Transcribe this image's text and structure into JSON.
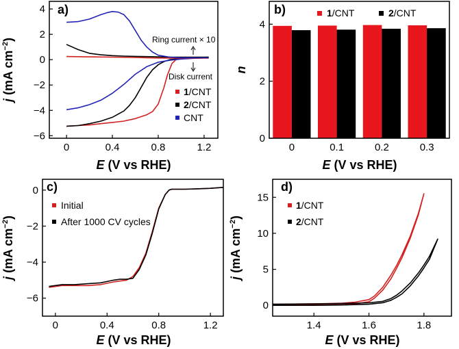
{
  "chart_data": [
    {
      "panel": "a)",
      "type": "line",
      "xlabel_var": "E",
      "xlabel_rest": " (V vs RHE)",
      "ylabel_var": "j",
      "ylabel_rest": " (mA cm",
      "ylabel_sup": "−2",
      "ylabel_close": ")",
      "xlim": [
        -0.15,
        1.32
      ],
      "ylim": [
        -6.2,
        4.6
      ],
      "xticks": [
        0,
        0.4,
        0.8,
        1.2
      ],
      "xtick_labels": [
        "0",
        "0.4",
        "0.8",
        "1.2"
      ],
      "yticks": [
        -6,
        -4,
        -2,
        0,
        2,
        4
      ],
      "ytick_labels": [
        "−6",
        "−4",
        "−2",
        "0",
        "2",
        "4"
      ],
      "annotations": {
        "ring_prefix": "Ring current",
        "ring_suffix": "× 10",
        "disk": "Disk current"
      },
      "legend_position": "lower-right",
      "series": [
        {
          "name_bold": "1",
          "name_rest": "/CNT",
          "color": "#d42020",
          "x": [
            0,
            0.1,
            0.2,
            0.3,
            0.4,
            0.5,
            0.6,
            0.7,
            0.75,
            0.8,
            0.85,
            0.88,
            0.92,
            0.96,
            1.0,
            1.1,
            1.24
          ],
          "y": [
            -5.25,
            -5.2,
            -5.15,
            -5.05,
            -4.95,
            -4.85,
            -4.65,
            -4.35,
            -4.1,
            -3.5,
            -2.2,
            -1.2,
            -0.3,
            0.05,
            0.1,
            0.12,
            0.15
          ]
        },
        {
          "name_bold": "2",
          "name_rest": "/CNT",
          "color": "#000000",
          "x": [
            0,
            0.1,
            0.2,
            0.3,
            0.4,
            0.5,
            0.55,
            0.6,
            0.65,
            0.7,
            0.75,
            0.8,
            0.85,
            0.9,
            1.0,
            1.1,
            1.24
          ],
          "y": [
            -5.25,
            -5.2,
            -5.05,
            -4.85,
            -4.55,
            -4.05,
            -3.6,
            -3.0,
            -2.2,
            -1.4,
            -0.8,
            -0.4,
            -0.15,
            0.0,
            0.1,
            0.15,
            0.2
          ]
        },
        {
          "name_bold": "",
          "name_rest": "CNT",
          "color": "#2323b5",
          "x": [
            0,
            0.1,
            0.2,
            0.3,
            0.4,
            0.5,
            0.6,
            0.7,
            0.8,
            0.9,
            1.0,
            1.1,
            1.24
          ],
          "y": [
            -3.95,
            -3.8,
            -3.55,
            -3.2,
            -2.65,
            -1.95,
            -1.15,
            -0.55,
            -0.2,
            -0.05,
            0.05,
            0.1,
            0.15
          ]
        },
        {
          "name_bold": "",
          "name_rest": "1/CNT ring",
          "color": "#d42020",
          "legend": false,
          "x": [
            0,
            0.2,
            0.4,
            0.6,
            0.7,
            0.8,
            0.9,
            1.0,
            1.1,
            1.24
          ],
          "y": [
            0.25,
            0.22,
            0.2,
            0.17,
            0.15,
            0.13,
            0.12,
            0.12,
            0.12,
            0.12
          ]
        },
        {
          "name_bold": "",
          "name_rest": "2/CNT ring",
          "color": "#000000",
          "legend": false,
          "x": [
            0,
            0.05,
            0.1,
            0.15,
            0.2,
            0.3,
            0.4,
            0.5,
            0.6,
            0.7,
            0.8,
            0.9,
            1.0,
            1.24
          ],
          "y": [
            1.2,
            1.0,
            0.8,
            0.65,
            0.5,
            0.38,
            0.32,
            0.28,
            0.26,
            0.24,
            0.22,
            0.2,
            0.2,
            0.2
          ]
        },
        {
          "name_bold": "",
          "name_rest": "CNT ring",
          "color": "#2323b5",
          "legend": false,
          "x": [
            0,
            0.1,
            0.2,
            0.3,
            0.35,
            0.4,
            0.45,
            0.5,
            0.55,
            0.6,
            0.65,
            0.7,
            0.75,
            0.8,
            0.9,
            1.0,
            1.24
          ],
          "y": [
            2.95,
            3.0,
            3.2,
            3.55,
            3.7,
            3.8,
            3.75,
            3.55,
            3.05,
            2.3,
            1.55,
            1.0,
            0.6,
            0.35,
            0.2,
            0.15,
            0.15
          ]
        }
      ]
    },
    {
      "panel": "b)",
      "type": "bar",
      "xlabel_var": "E",
      "xlabel_rest": " (V vs RHE)",
      "ylabel_var": "n",
      "categories": [
        "0",
        "0.1",
        "0.2",
        "0.3"
      ],
      "ylim": [
        0,
        4.8
      ],
      "yticks": [
        0,
        2,
        4
      ],
      "ytick_labels": [
        "0",
        "2",
        "4"
      ],
      "legend_position": "top",
      "series": [
        {
          "name_bold": "1",
          "name_rest": "/CNT",
          "color": "#e8171d",
          "values": [
            3.94,
            3.95,
            3.97,
            3.96
          ]
        },
        {
          "name_bold": "2",
          "name_rest": "/CNT",
          "color": "#000000",
          "values": [
            3.79,
            3.81,
            3.84,
            3.86
          ]
        }
      ]
    },
    {
      "panel": "c)",
      "type": "line",
      "xlabel_var": "E",
      "xlabel_rest": " (V vs RHE)",
      "ylabel_var": "j",
      "ylabel_rest": " (mA cm",
      "ylabel_sup": "−2",
      "ylabel_close": ")",
      "xlim": [
        -0.1,
        1.3
      ],
      "ylim": [
        -7.0,
        0.6
      ],
      "xticks": [
        0,
        0.4,
        0.8,
        1.2
      ],
      "xtick_labels": [
        "0",
        "0.4",
        "0.8",
        "1.2"
      ],
      "yticks": [
        -6,
        -4,
        -2,
        0
      ],
      "ytick_labels": [
        "−6",
        "−4",
        "−2",
        "0"
      ],
      "legend_position": "top-left",
      "series": [
        {
          "name_bold": "",
          "name_rest": "Initial",
          "color": "#d42020",
          "x": [
            -0.05,
            0.05,
            0.15,
            0.25,
            0.35,
            0.45,
            0.5,
            0.55,
            0.6,
            0.65,
            0.7,
            0.75,
            0.8,
            0.85,
            0.88,
            0.9,
            0.95,
            1.0,
            1.1,
            1.2,
            1.3
          ],
          "y": [
            -5.4,
            -5.3,
            -5.3,
            -5.3,
            -5.25,
            -5.1,
            -5.05,
            -5.0,
            -4.8,
            -4.3,
            -3.5,
            -2.3,
            -1.0,
            -0.25,
            0.0,
            0.05,
            0.05,
            0.05,
            0.07,
            0.1,
            0.15
          ]
        },
        {
          "name_bold": "",
          "name_rest": "After 1000 CV cycles",
          "color": "#000000",
          "x": [
            -0.05,
            0.05,
            0.15,
            0.25,
            0.35,
            0.45,
            0.5,
            0.55,
            0.6,
            0.65,
            0.7,
            0.75,
            0.8,
            0.85,
            0.88,
            0.9,
            0.95,
            1.0,
            1.1,
            1.2,
            1.3
          ],
          "y": [
            -5.35,
            -5.25,
            -5.25,
            -5.2,
            -5.15,
            -5.0,
            -4.95,
            -4.95,
            -4.9,
            -4.4,
            -3.6,
            -2.4,
            -1.05,
            -0.25,
            0.0,
            0.05,
            0.05,
            0.05,
            0.07,
            0.1,
            0.15
          ]
        }
      ]
    },
    {
      "panel": "d)",
      "type": "line",
      "xlabel_var": "E",
      "xlabel_rest": " (V vs RHE)",
      "ylabel_var": "j",
      "ylabel_rest": " (mA cm",
      "ylabel_sup": "−2",
      "ylabel_close": ")",
      "xlim": [
        1.25,
        1.9
      ],
      "ylim": [
        -1.5,
        17.5
      ],
      "xticks": [
        1.4,
        1.6,
        1.8
      ],
      "xtick_labels": [
        "1.4",
        "1.6",
        "1.8"
      ],
      "yticks": [
        0,
        5,
        10,
        15
      ],
      "ytick_labels": [
        "0",
        "5",
        "10",
        "15"
      ],
      "legend_position": "top-left",
      "series": [
        {
          "name_bold": "1",
          "name_rest": "/CNT",
          "color": "#d42020",
          "x": [
            1.25,
            1.4,
            1.5,
            1.55,
            1.6,
            1.62,
            1.65,
            1.68,
            1.7,
            1.72,
            1.75,
            1.78,
            1.8,
            1.78,
            1.75,
            1.72,
            1.7,
            1.68,
            1.65,
            1.62,
            1.6,
            1.55,
            1.5,
            1.4,
            1.25
          ],
          "y": [
            0.15,
            0.2,
            0.3,
            0.45,
            0.8,
            1.3,
            2.5,
            4.2,
            5.5,
            7.0,
            9.6,
            12.8,
            15.5,
            12.6,
            9.3,
            6.6,
            5.1,
            3.7,
            2.1,
            1.0,
            0.5,
            0.2,
            0.1,
            0.05,
            0.05
          ]
        },
        {
          "name_bold": "2",
          "name_rest": "/CNT",
          "color": "#000000",
          "x": [
            1.25,
            1.4,
            1.5,
            1.6,
            1.65,
            1.68,
            1.7,
            1.72,
            1.75,
            1.78,
            1.8,
            1.82,
            1.85,
            1.82,
            1.8,
            1.78,
            1.75,
            1.72,
            1.7,
            1.68,
            1.65,
            1.6,
            1.5,
            1.4,
            1.25
          ],
          "y": [
            0.15,
            0.2,
            0.25,
            0.35,
            0.55,
            0.95,
            1.4,
            2.0,
            3.1,
            4.5,
            5.6,
            6.8,
            9.2,
            6.4,
            5.2,
            4.1,
            2.7,
            1.6,
            1.1,
            0.7,
            0.35,
            0.15,
            0.05,
            0.0,
            0.0
          ]
        }
      ]
    }
  ]
}
